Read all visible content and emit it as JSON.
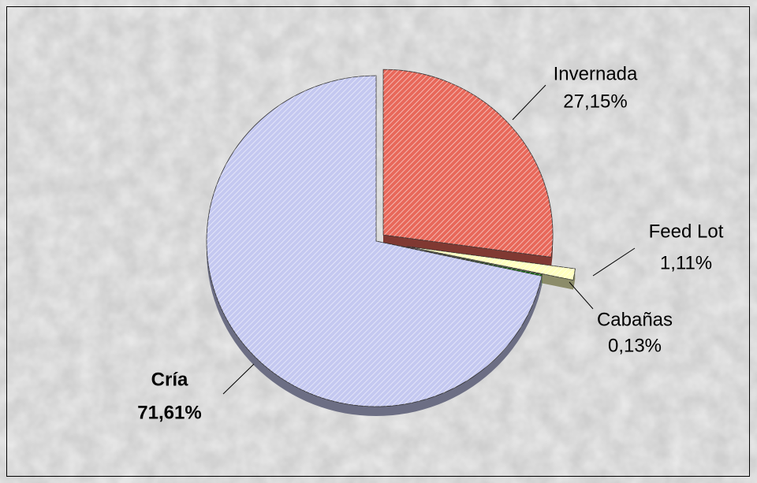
{
  "chart_data": {
    "type": "pie",
    "categories": [
      "Invernada",
      "Feed Lot",
      "Cabañas",
      "Cría"
    ],
    "values": [
      27.15,
      1.11,
      0.13,
      71.61
    ],
    "value_labels": [
      "27,15%",
      "1,11%",
      "0,13%",
      "71,61%"
    ],
    "colors": [
      "#e8685a",
      "#ffffc0",
      "#009900",
      "#c4c8f0"
    ]
  }
}
